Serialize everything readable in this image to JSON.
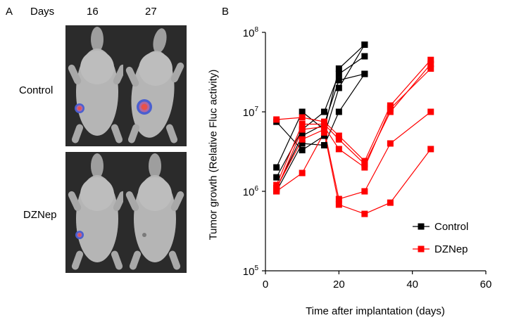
{
  "panel_a": {
    "letter": "A",
    "days_label": "Days",
    "columns": [
      "16",
      "27"
    ],
    "rows": [
      "Control",
      "DZNep"
    ],
    "image_description_colors": {
      "background": "#2b2b2b",
      "mouse": "#b5b5b5",
      "signal_core": "#e8524a",
      "signal_ring": "#4a5fd0"
    }
  },
  "panel_b": {
    "letter": "B"
  },
  "chart_data": {
    "type": "line",
    "title": "",
    "xlabel": "Time after implantation (days)",
    "ylabel": "Tumor growth (Relative Fluc activity)",
    "xlim": [
      0,
      60
    ],
    "xticks": [
      0,
      20,
      40,
      60
    ],
    "ylim": [
      100000,
      100000000
    ],
    "yscale": "log",
    "yticks": [
      {
        "value": 100000,
        "base": "10",
        "exp": "5"
      },
      {
        "value": 1000000,
        "base": "10",
        "exp": "6"
      },
      {
        "value": 10000000,
        "base": "10",
        "exp": "7"
      },
      {
        "value": 100000000,
        "base": "10",
        "exp": "8"
      }
    ],
    "legend": {
      "position": "bottom-right",
      "entries": [
        "Control",
        "DZNep"
      ]
    },
    "series": [
      {
        "name": "Control",
        "color": "#000000",
        "lines": [
          {
            "x": [
              3,
              10,
              16,
              20,
              27
            ],
            "y": [
              2000000,
              10000000,
              6000000,
              35000000,
              70000000
            ]
          },
          {
            "x": [
              3,
              10,
              16,
              20,
              27
            ],
            "y": [
              1500000,
              6000000,
              10000000,
              30000000,
              50000000
            ]
          },
          {
            "x": [
              3,
              10,
              16,
              20,
              27
            ],
            "y": [
              1100000,
              5000000,
              7000000,
              25000000,
              30000000
            ]
          },
          {
            "x": [
              3,
              10,
              16,
              20,
              27
            ],
            "y": [
              7500000,
              3300000,
              5000000,
              20000000,
              70000000
            ]
          },
          {
            "x": [
              3,
              10,
              16,
              20,
              27
            ],
            "y": [
              1000000,
              4000000,
              3800000,
              10000000,
              30000000
            ]
          }
        ]
      },
      {
        "name": "DZNep",
        "color": "#ff0000",
        "lines": [
          {
            "x": [
              3,
              10,
              16,
              20,
              27,
              34,
              45
            ],
            "y": [
              8000000,
              8500000,
              7500000,
              5000000,
              2400000,
              12000000,
              45000000
            ]
          },
          {
            "x": [
              3,
              10,
              16,
              20,
              27,
              34,
              45
            ],
            "y": [
              1200000,
              7000000,
              7000000,
              4500000,
              2200000,
              10000000,
              40000000
            ]
          },
          {
            "x": [
              3,
              10,
              16,
              20,
              27,
              34,
              45
            ],
            "y": [
              1050000,
              6000000,
              6500000,
              3400000,
              2000000,
              11000000,
              35000000
            ]
          },
          {
            "x": [
              3,
              10,
              16,
              20,
              27,
              34,
              45
            ],
            "y": [
              1100000,
              4500000,
              6000000,
              800000,
              1000000,
              4000000,
              10000000
            ]
          },
          {
            "x": [
              3,
              10,
              16,
              20,
              27,
              34,
              45
            ],
            "y": [
              1000000,
              1700000,
              5500000,
              680000,
              520000,
              720000,
              3400000
            ]
          }
        ]
      }
    ]
  }
}
